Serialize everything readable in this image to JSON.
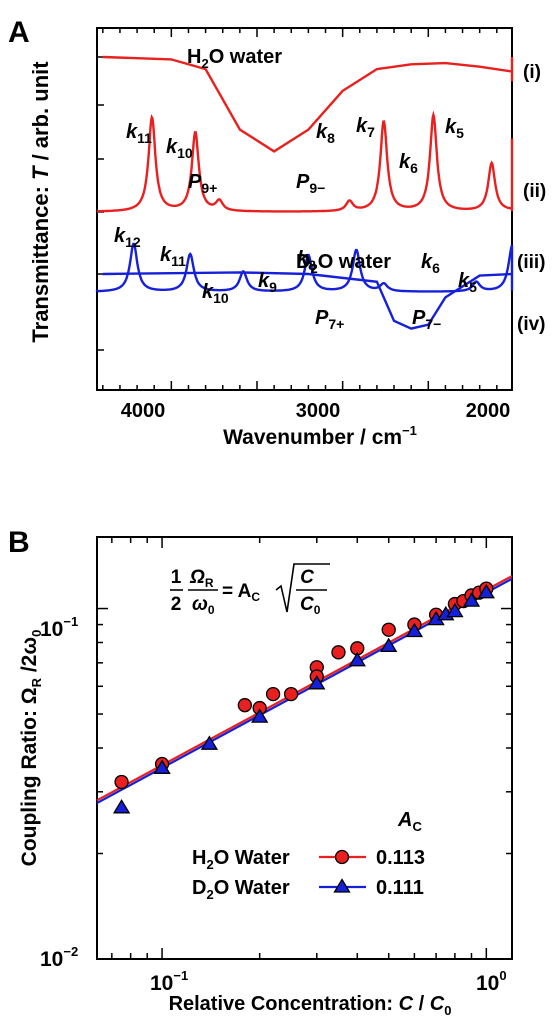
{
  "panel_a": {
    "letter": "A",
    "ylabel_pre": "Transmittance: ",
    "ylabel_var": "T",
    "ylabel_post": " / arb. unit",
    "xlabel": "Wavenumber / cm",
    "xlabel_exp": "−1",
    "h2o_label_pre": "H",
    "h2o_label_sub": "2",
    "h2o_label_post": "O water",
    "d2o_label_pre": "D",
    "d2o_label_sub": "2",
    "d2o_label_post": "O water",
    "trace_labels": [
      "(i)",
      "(ii)",
      "(iii)",
      "(iv)"
    ],
    "peak_labels_h2o": [
      {
        "main": "k",
        "sub": "11"
      },
      {
        "main": "k",
        "sub": "10"
      },
      {
        "main": "P",
        "sub": "9+"
      },
      {
        "main": "P",
        "sub": "9−"
      },
      {
        "main": "k",
        "sub": "8"
      },
      {
        "main": "k",
        "sub": "7"
      },
      {
        "main": "k",
        "sub": "6"
      },
      {
        "main": "k",
        "sub": "5"
      }
    ],
    "peak_labels_d2o": [
      {
        "main": "k",
        "sub": "12"
      },
      {
        "main": "k",
        "sub": "11"
      },
      {
        "main": "k",
        "sub": "10"
      },
      {
        "main": "k",
        "sub": "9"
      },
      {
        "main": "k",
        "sub": "8"
      },
      {
        "main": "P",
        "sub": "7+"
      },
      {
        "main": "P",
        "sub": "7−"
      },
      {
        "main": "k",
        "sub": "6"
      },
      {
        "main": "k",
        "sub": "5"
      }
    ],
    "xtick_labels": [
      "4000",
      "3000",
      "2000"
    ],
    "colors": {
      "h2o": "#e8201f",
      "d2o": "#1520d8"
    }
  },
  "panel_b": {
    "letter": "B",
    "ylabel": "Coupling Ratio: Ω",
    "ylabel_sub_r": "R",
    "ylabel_mid": " /2ω",
    "ylabel_sub_0": "0",
    "xlabel_pre": "Relative Concentration: ",
    "xlabel_c": "C",
    "xlabel_slash": " / ",
    "xlabel_c0": "C",
    "xlabel_c0_sub": "0",
    "ytick_labels": [
      {
        "base": "10",
        "exp": "−1"
      },
      {
        "base": "10",
        "exp": "−2"
      }
    ],
    "xtick_labels": [
      {
        "base": "10",
        "exp": "−1"
      },
      {
        "base": "10",
        "exp": "0"
      }
    ],
    "equation": {
      "half_num": "1",
      "half_den": "2",
      "omega_r": "Ω",
      "omega_r_sub": "R",
      "omega_0": "ω",
      "omega_0_sub": "0",
      "equals": "= A",
      "ac_sub": "C",
      "c": "C",
      "c0": "C",
      "c0_sub": "0"
    },
    "legend_header": "A",
    "legend_header_sub": "C",
    "legend": [
      {
        "name_pre": "H",
        "name_sub": "2",
        "name_post": "O Water",
        "value": "0.113"
      },
      {
        "name_pre": "D",
        "name_sub": "2",
        "name_post": "O Water",
        "value": "0.111"
      }
    ]
  },
  "chart_data": [
    {
      "type": "line",
      "title": "",
      "xlabel": "Wavenumber / cm−1",
      "ylabel": "Transmittance: T / arb. unit",
      "xlim": [
        4400,
        1600
      ],
      "x_reversed": true,
      "series": [
        {
          "name": "(i)",
          "note_label": "H2O water",
          "x": [
            4400,
            4000,
            3800,
            3600,
            3400,
            3200,
            3000,
            2800,
            2600,
            2400,
            2200,
            2000,
            1800,
            1700,
            1650,
            1600
          ],
          "y": [
            1.0,
            0.98,
            0.9,
            0.4,
            0.22,
            0.4,
            0.72,
            0.9,
            0.94,
            0.95,
            0.92,
            0.88,
            0.93,
            0.8,
            0.96,
            1.0
          ]
        },
        {
          "name": "(ii)",
          "x": [
            4113,
            3860,
            3720,
            2960,
            2760,
            2470,
            2130,
            1830
          ],
          "y": [
            0.94,
            0.79,
            0.1,
            0.1,
            0.9,
            0.96,
            0.48,
            0.73
          ]
        },
        {
          "name": "(iii)",
          "note_label": "D2O water",
          "x": [
            4400,
            3600,
            3200,
            2800,
            2700,
            2600,
            2500,
            2400,
            2200,
            2000,
            1800,
            1600
          ],
          "y": [
            1.0,
            1.02,
            1.0,
            0.9,
            0.4,
            0.3,
            0.35,
            0.7,
            0.98,
            1.0,
            1.0,
            1.0
          ]
        },
        {
          "name": "(iv)",
          "x": [
            4220,
            3890,
            3580,
            3200,
            2920,
            2760,
            2220,
            2010,
            1740
          ],
          "y": [
            0.96,
            0.75,
            0.4,
            0.73,
            0.83,
            0.15,
            0.19,
            0.92,
            0.85
          ]
        }
      ]
    },
    {
      "type": "scatter",
      "title": "",
      "xlabel": "Relative Concentration: C/C0",
      "ylabel": "Coupling Ratio: ΩR/2ω0",
      "xscale": "log",
      "yscale": "log",
      "xlim": [
        0.063,
        1.2
      ],
      "ylim": [
        0.01,
        0.16
      ],
      "equation_text": "1/2 ΩR/ω0 = AC √(C/C0)",
      "series": [
        {
          "name": "H2O Water",
          "A_C": 0.113,
          "marker": "circle",
          "x": [
            0.075,
            0.1,
            0.18,
            0.2,
            0.22,
            0.25,
            0.3,
            0.3,
            0.35,
            0.4,
            0.5,
            0.6,
            0.7,
            0.8,
            0.85,
            0.9,
            0.95,
            1.0
          ],
          "y": [
            0.032,
            0.036,
            0.053,
            0.052,
            0.057,
            0.057,
            0.068,
            0.064,
            0.075,
            0.077,
            0.087,
            0.09,
            0.096,
            0.103,
            0.105,
            0.109,
            0.111,
            0.114
          ]
        },
        {
          "name": "D2O Water",
          "A_C": 0.111,
          "marker": "triangle",
          "x": [
            0.075,
            0.1,
            0.14,
            0.2,
            0.3,
            0.4,
            0.5,
            0.6,
            0.7,
            0.75,
            0.8,
            0.9,
            1.0
          ],
          "y": [
            0.027,
            0.035,
            0.041,
            0.049,
            0.061,
            0.071,
            0.078,
            0.086,
            0.093,
            0.096,
            0.098,
            0.105,
            0.111
          ]
        }
      ]
    }
  ]
}
